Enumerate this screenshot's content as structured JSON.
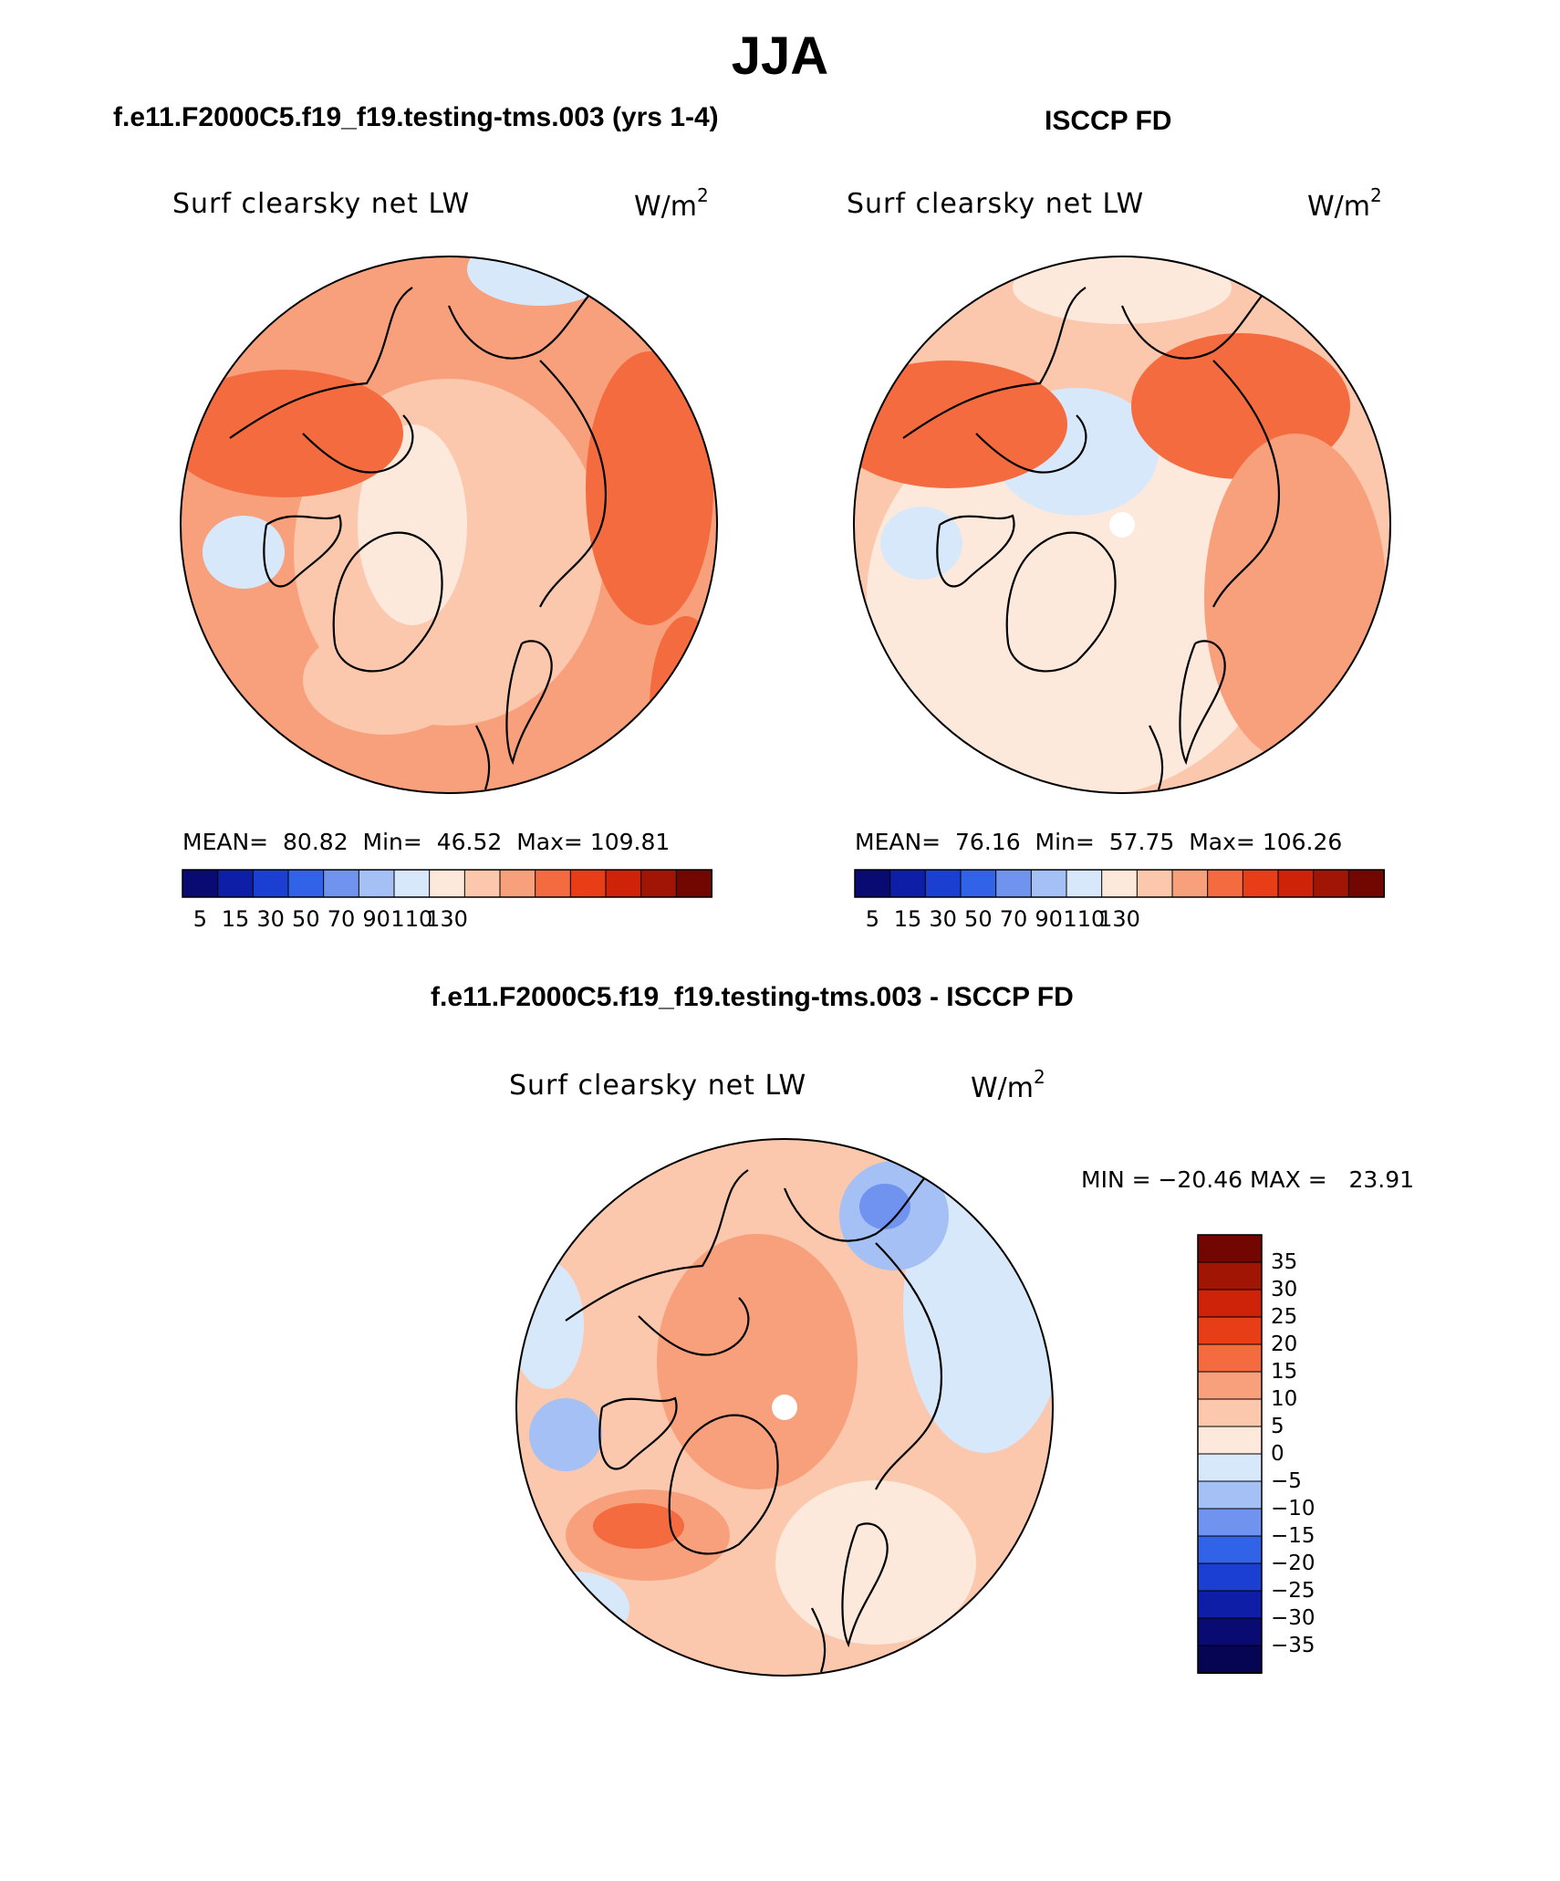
{
  "figure": {
    "title": "JJA"
  },
  "panels": [
    {
      "header": "f.e11.F2000C5.f19_f19.testing-tms.003 (yrs 1-4)",
      "variable": "Surf clearsky net LW",
      "units_base": "W/m",
      "units_exp": "2",
      "mean_label": "MEAN=",
      "mean": "80.82",
      "min_label": "Min=",
      "min": "46.52",
      "max_label": "Max=",
      "max": "109.81",
      "projection": "north-polar-stereographic",
      "field": "warm"
    },
    {
      "header": "ISCCP FD",
      "variable": "Surf clearsky net LW",
      "units_base": "W/m",
      "units_exp": "2",
      "mean_label": "MEAN=",
      "mean": "76.16",
      "min_label": "Min=",
      "min": "57.75",
      "max_label": "Max=",
      "max": "106.26",
      "projection": "north-polar-stereographic",
      "field": "warm-obs"
    }
  ],
  "colorbar_abs": {
    "tick_labels": [
      "5",
      "15",
      "30",
      "50",
      "70",
      "90",
      "110",
      "130"
    ],
    "colors": [
      "#0a0a73",
      "#0e1ea6",
      "#1a3fd1",
      "#3163e8",
      "#6f93ee",
      "#a4c0f5",
      "#d8e8fb",
      "#fde9db",
      "#fbc7ad",
      "#f7a07b",
      "#f36b3f",
      "#e83e18",
      "#ce2308",
      "#a11504",
      "#720702"
    ]
  },
  "diff_panel": {
    "header": "f.e11.F2000C5.f19_f19.testing-tms.003 - ISCCP FD",
    "variable": "Surf clearsky net LW",
    "units_base": "W/m",
    "units_exp": "2",
    "minmax_text": "MIN = −20.46 MAX =   23.91",
    "min": "-20.46",
    "max": "23.91",
    "field": "diff"
  },
  "colorbar_diff": {
    "tick_labels": [
      "35",
      "30",
      "25",
      "20",
      "15",
      "10",
      "5",
      "0",
      "−5",
      "−10",
      "−15",
      "−20",
      "−25",
      "−30",
      "−35"
    ],
    "colors": [
      "#720702",
      "#a11504",
      "#ce2308",
      "#e83e18",
      "#f36b3f",
      "#f7a07b",
      "#fbc7ad",
      "#fde9db",
      "#d8e8fb",
      "#a4c0f5",
      "#6f93ee",
      "#3163e8",
      "#1a3fd1",
      "#0e1ea6",
      "#0a0a73",
      "#050553"
    ]
  }
}
